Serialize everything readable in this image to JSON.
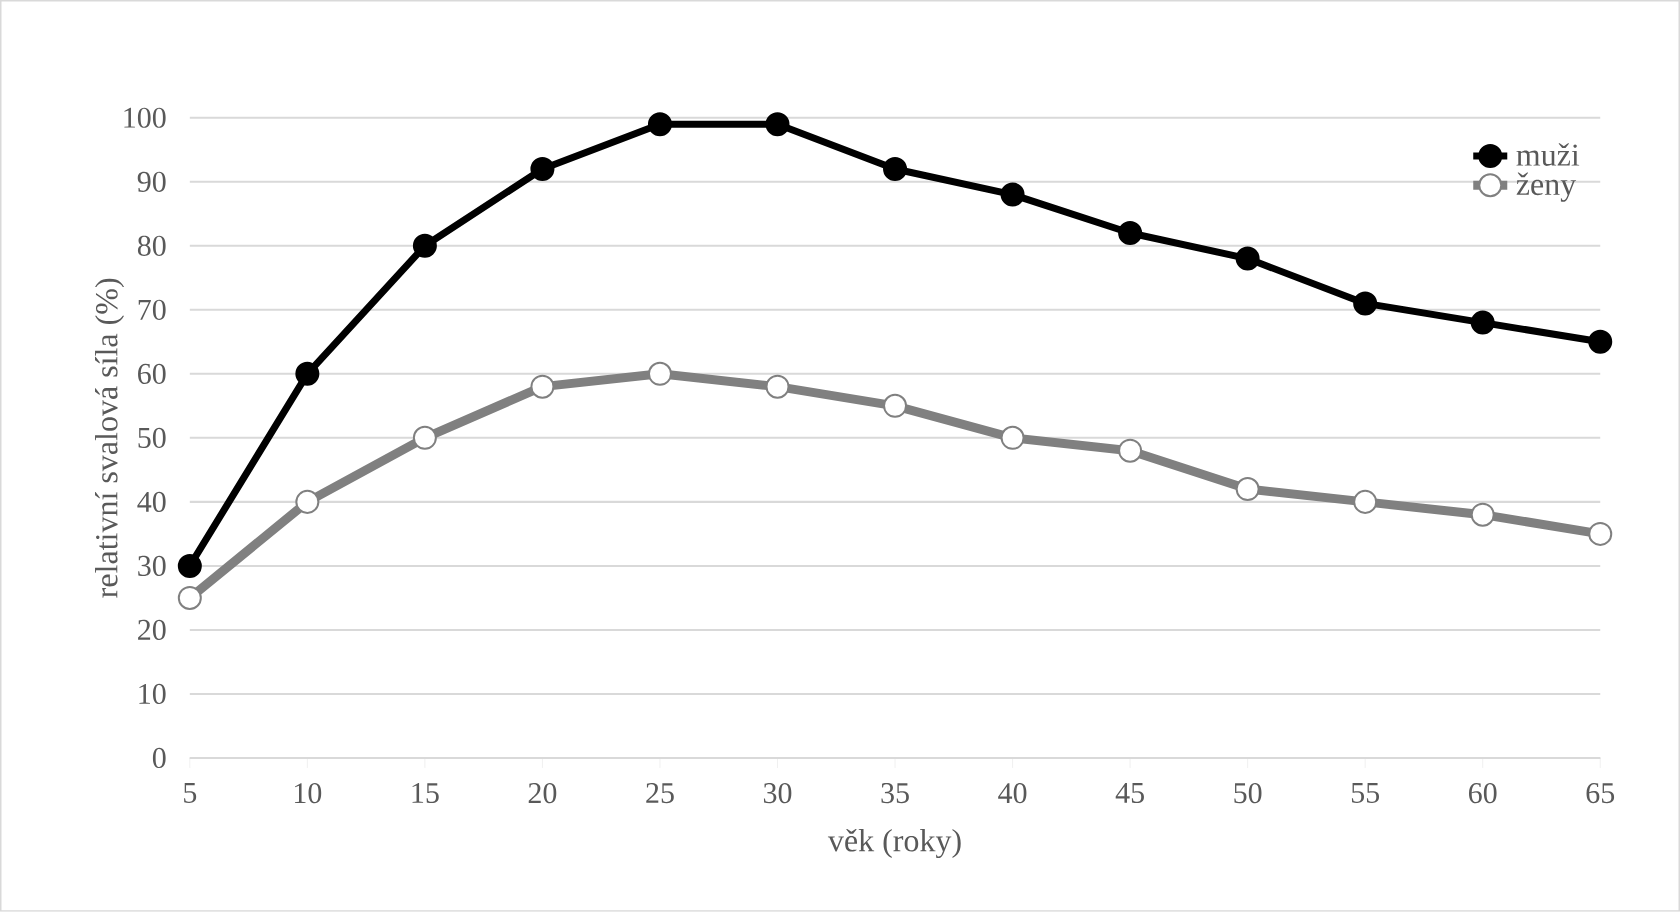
{
  "chart_data": {
    "type": "line",
    "xlabel": "věk (roky)",
    "ylabel": "relativní svalová síla (%)",
    "x": [
      5,
      10,
      15,
      20,
      25,
      30,
      35,
      40,
      45,
      50,
      55,
      60,
      65
    ],
    "series": [
      {
        "name": "muži",
        "color": "#000000",
        "values": [
          30,
          60,
          80,
          92,
          99,
          99,
          92,
          88,
          82,
          78,
          71,
          68,
          65
        ]
      },
      {
        "name": "ženy",
        "color": "#808080",
        "values": [
          25,
          40,
          50,
          58,
          60,
          58,
          55,
          50,
          48,
          42,
          40,
          38,
          35
        ]
      }
    ],
    "xlim": [
      5,
      65
    ],
    "xticks": [
      5,
      10,
      15,
      20,
      25,
      30,
      35,
      40,
      45,
      50,
      55,
      60,
      65
    ],
    "ylim": [
      0,
      100
    ],
    "yticks": [
      0,
      10,
      20,
      30,
      40,
      50,
      60,
      70,
      80,
      90,
      100
    ],
    "grid": "y",
    "legend": "top right",
    "marker": "circle",
    "line_style": "solid"
  }
}
